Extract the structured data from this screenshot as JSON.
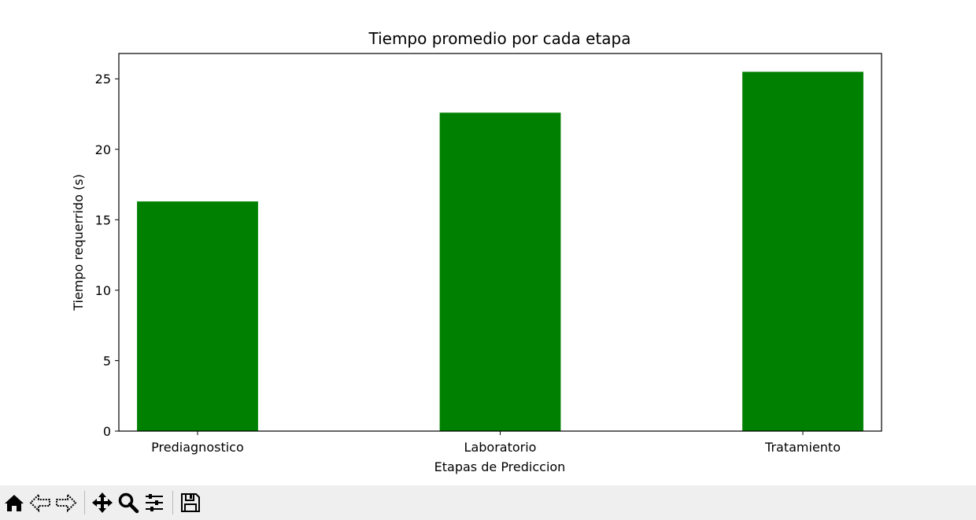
{
  "chart_data": {
    "type": "bar",
    "title": "Tiempo promedio por cada etapa",
    "xlabel": "Etapas de Prediccion",
    "ylabel": "Tiempo requerrido (s)",
    "categories": [
      "Prediagnostico",
      "Laboratorio",
      "Tratamiento"
    ],
    "values": [
      16.3,
      22.6,
      25.5
    ],
    "ylim": [
      0,
      26.8
    ],
    "yticks": [
      0,
      5,
      10,
      15,
      20,
      25
    ],
    "bar_color": "#008000",
    "grid": false
  },
  "toolbar": {
    "buttons": [
      {
        "name": "home-button",
        "icon": "home-icon"
      },
      {
        "name": "back-button",
        "icon": "arrow-left-icon"
      },
      {
        "name": "forward-button",
        "icon": "arrow-right-icon"
      },
      {
        "name": "pan-button",
        "icon": "move-icon"
      },
      {
        "name": "zoom-button",
        "icon": "magnifier-icon"
      },
      {
        "name": "configure-subplots-button",
        "icon": "sliders-icon"
      },
      {
        "name": "save-button",
        "icon": "floppy-disk-icon"
      }
    ]
  }
}
